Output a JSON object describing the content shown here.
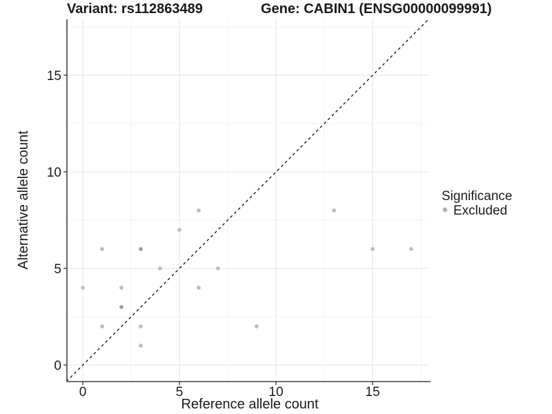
{
  "chart_data": {
    "type": "scatter",
    "title_left": "Variant: rs112863489",
    "title_right": "Gene: CABIN1 (ENSG00000099991)",
    "xlabel": "Reference allele count",
    "ylabel": "Alternative allele count",
    "x_ticks": [
      0,
      5,
      10,
      15
    ],
    "y_ticks": [
      0,
      5,
      10,
      15
    ],
    "x_minor_ticks": [
      2.5,
      7.5,
      12.5,
      17.5
    ],
    "y_minor_ticks": [
      2.5,
      7.5,
      12.5,
      17.5
    ],
    "xlim": [
      -0.86,
      17.93
    ],
    "ylim": [
      -0.86,
      17.93
    ],
    "grid": "on",
    "identity_line": {
      "style": "dashed",
      "from": [
        -0.85,
        -0.85
      ],
      "to": [
        17.9,
        17.9
      ]
    },
    "series_name": "Excluded",
    "points": [
      {
        "x": 0,
        "y": 4,
        "n": 1
      },
      {
        "x": 1,
        "y": 2,
        "n": 1
      },
      {
        "x": 1,
        "y": 6,
        "n": 1
      },
      {
        "x": 2,
        "y": 3,
        "n": 2
      },
      {
        "x": 2,
        "y": 4,
        "n": 1
      },
      {
        "x": 3,
        "y": 1,
        "n": 1
      },
      {
        "x": 3,
        "y": 2,
        "n": 1
      },
      {
        "x": 3,
        "y": 6,
        "n": 2
      },
      {
        "x": 4,
        "y": 5,
        "n": 1
      },
      {
        "x": 5,
        "y": 7,
        "n": 1
      },
      {
        "x": 6,
        "y": 4,
        "n": 1
      },
      {
        "x": 6,
        "y": 8,
        "n": 1
      },
      {
        "x": 7,
        "y": 5,
        "n": 1
      },
      {
        "x": 9,
        "y": 2,
        "n": 1
      },
      {
        "x": 13,
        "y": 8,
        "n": 1
      },
      {
        "x": 15,
        "y": 6,
        "n": 1
      },
      {
        "x": 17,
        "y": 6,
        "n": 1
      }
    ],
    "legend": {
      "title": "Significance",
      "position": "right",
      "entries": [
        {
          "label": "Excluded",
          "color": "#b3b3b3"
        }
      ]
    },
    "colors": {
      "point_single": "#bdbdbd",
      "point_overlap": "#9e9e9e",
      "grid_major": "#e3e3e3",
      "grid_minor": "#f0f0f0",
      "axis_line": "#404040",
      "text": "#1a1a1a",
      "identity_line": "#1a1a1a",
      "background": "#ffffff"
    }
  }
}
